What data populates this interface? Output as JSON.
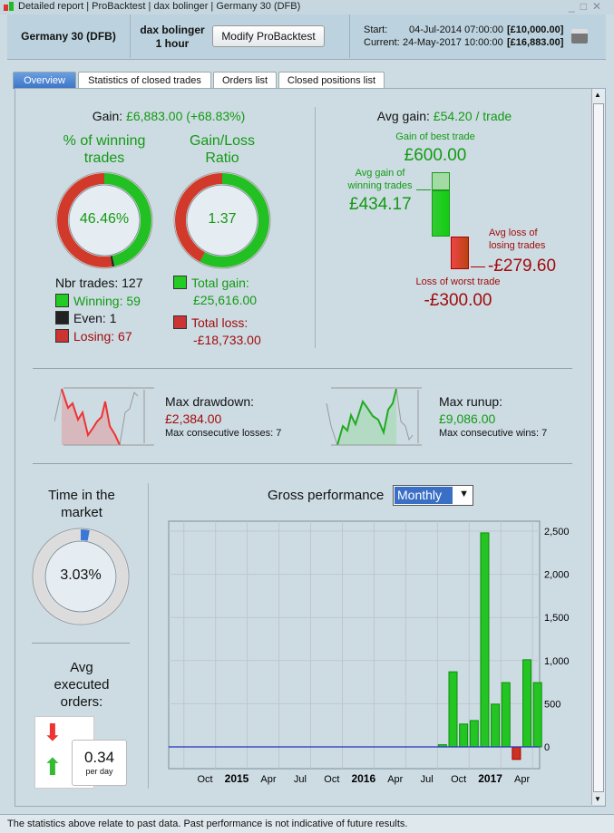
{
  "window": {
    "tabs": [
      "Detailed report",
      "ProBacktest",
      "dax bolinger",
      "Germany 30 (DFB)"
    ]
  },
  "header": {
    "instrument": "Germany 30 (DFB)",
    "strategy": "dax bolinger",
    "timeframe": "1 hour",
    "modify_label": "Modify ProBacktest",
    "start_label": "Start:",
    "start_date": "04-Jul-2014 07:00:00",
    "start_capital": "[£10,000.00]",
    "current_label": "Current:",
    "current_date": "24-May-2017 10:00:00",
    "current_capital": "[£16,883.00]"
  },
  "tabs": [
    {
      "label": "Overview",
      "active": true
    },
    {
      "label": "Statistics of closed trades"
    },
    {
      "label": "Orders list"
    },
    {
      "label": "Closed positions list"
    }
  ],
  "gain": {
    "label": "Gain:",
    "value": "£6,883.00 (+68.83%)"
  },
  "winning": {
    "title1": "% of winning",
    "title2": "trades",
    "pct": "46.46%",
    "nbr": "Nbr trades: 127",
    "win": "Winning: 59",
    "even": "Even: 1",
    "lose": "Losing: 67",
    "counts": [
      59,
      1,
      67
    ]
  },
  "ratio": {
    "title1": "Gain/Loss",
    "title2": "Ratio",
    "value": "1.37",
    "gain_label": "Total gain:",
    "gain": "£25,616.00",
    "loss_label": "Total loss:",
    "loss": "-£18,733.00",
    "gain_num": 25616,
    "loss_num": 18733
  },
  "avg": {
    "label": "Avg gain:",
    "value": "£54.20 / trade",
    "best_label": "Gain of best trade",
    "best": "£600.00",
    "avg_win_label1": "Avg gain of",
    "avg_win_label2": "winning trades",
    "avg_win": "£434.17",
    "avg_loss_label1": "Avg loss of",
    "avg_loss_label2": "losing trades",
    "avg_loss": "-£279.60",
    "worst_label": "Loss of worst trade",
    "worst": "-£300.00"
  },
  "drawdown": {
    "label": "Max drawdown:",
    "value": "£2,384.00",
    "sub": "Max consecutive losses: 7"
  },
  "runup": {
    "label": "Max runup:",
    "value": "£9,086.00",
    "sub": "Max consecutive wins: 7"
  },
  "time_market": {
    "title1": "Time in the",
    "title2": "market",
    "value": "3.03%",
    "fraction": 0.0303
  },
  "orders": {
    "title1": "Avg",
    "title2": "executed",
    "title3": "orders:",
    "value": "0.34",
    "unit": "per day"
  },
  "perf": {
    "label": "Gross performance",
    "period": "Monthly"
  },
  "chart_data": {
    "type": "bar",
    "title": "Gross performance",
    "ylim": [
      -250,
      2700
    ],
    "yticks": [
      0,
      500,
      1000,
      1500,
      2000,
      2500
    ],
    "ytick_labels": [
      "0",
      "500",
      "1,000",
      "1,500",
      "2,000",
      "2,500"
    ],
    "xtick_labels": [
      {
        "t": "Oct",
        "m": -3,
        "bold": false
      },
      {
        "t": "2015",
        "m": 0,
        "bold": true
      },
      {
        "t": "Apr",
        "m": 3,
        "bold": false
      },
      {
        "t": "Jul",
        "m": 6,
        "bold": false
      },
      {
        "t": "Oct",
        "m": 9,
        "bold": false
      },
      {
        "t": "2016",
        "m": 12,
        "bold": true
      },
      {
        "t": "Apr",
        "m": 15,
        "bold": false
      },
      {
        "t": "Jul",
        "m": 18,
        "bold": false
      },
      {
        "t": "Oct",
        "m": 21,
        "bold": false
      },
      {
        "t": "2017",
        "m": 24,
        "bold": true
      },
      {
        "t": "Apr",
        "m": 27,
        "bold": false
      }
    ],
    "categories": [
      "Aug 2016",
      "Sep 2016",
      "Oct 2016",
      "Nov 2016",
      "Dec 2016",
      "Jan 2017",
      "Feb 2017",
      "Mar 2017",
      "Apr 2017",
      "May 2017"
    ],
    "month_index": [
      19,
      20,
      21,
      22,
      23,
      24,
      25,
      26,
      27,
      28
    ],
    "values": [
      25,
      870,
      265,
      305,
      2480,
      495,
      745,
      -145,
      1010,
      745
    ]
  },
  "footer": "The statistics above relate to past data. Past performance is not indicative of future results."
}
